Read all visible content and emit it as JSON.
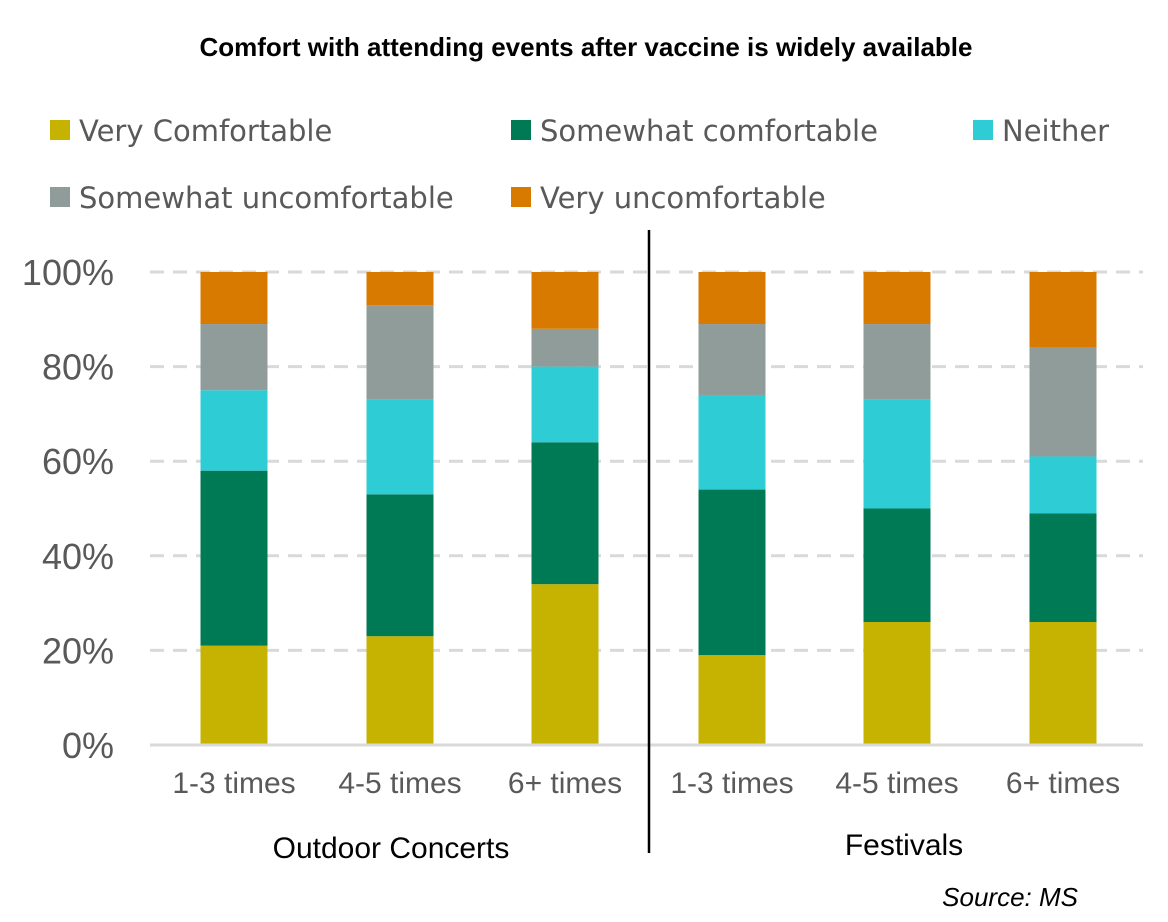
{
  "chart_data": {
    "type": "bar",
    "stacked": true,
    "title": "Comfort with attending events after vaccine is widely available",
    "source": "Source: MS",
    "ylim": [
      0,
      100
    ],
    "yticks": [
      "0%",
      "20%",
      "40%",
      "60%",
      "80%",
      "100%"
    ],
    "groups": [
      {
        "label": "Outdoor Concerts",
        "categories": [
          "1-3 times",
          "4-5 times",
          "6+ times"
        ]
      },
      {
        "label": "Festivals",
        "categories": [
          "1-3 times",
          "4-5 times",
          "6+ times"
        ]
      }
    ],
    "categories": [
      "1-3 times",
      "4-5 times",
      "6+ times",
      "1-3 times",
      "4-5 times",
      "6+ times"
    ],
    "series": [
      {
        "name": "Very Comfortable",
        "color": "#c6b200",
        "values": [
          21,
          23,
          34,
          19,
          26,
          26
        ]
      },
      {
        "name": "Somewhat comfortable",
        "color": "#007a55",
        "values": [
          37,
          30,
          30,
          35,
          24,
          23
        ]
      },
      {
        "name": "Neither",
        "color": "#2ecdd5",
        "values": [
          17,
          20,
          16,
          20,
          23,
          12
        ]
      },
      {
        "name": "Somewhat uncomfortable",
        "color": "#909c9a",
        "values": [
          14,
          20,
          8,
          15,
          16,
          23
        ]
      },
      {
        "name": "Very uncomfortable",
        "color": "#d87900",
        "values": [
          11,
          7,
          12,
          11,
          11,
          16
        ]
      }
    ]
  }
}
